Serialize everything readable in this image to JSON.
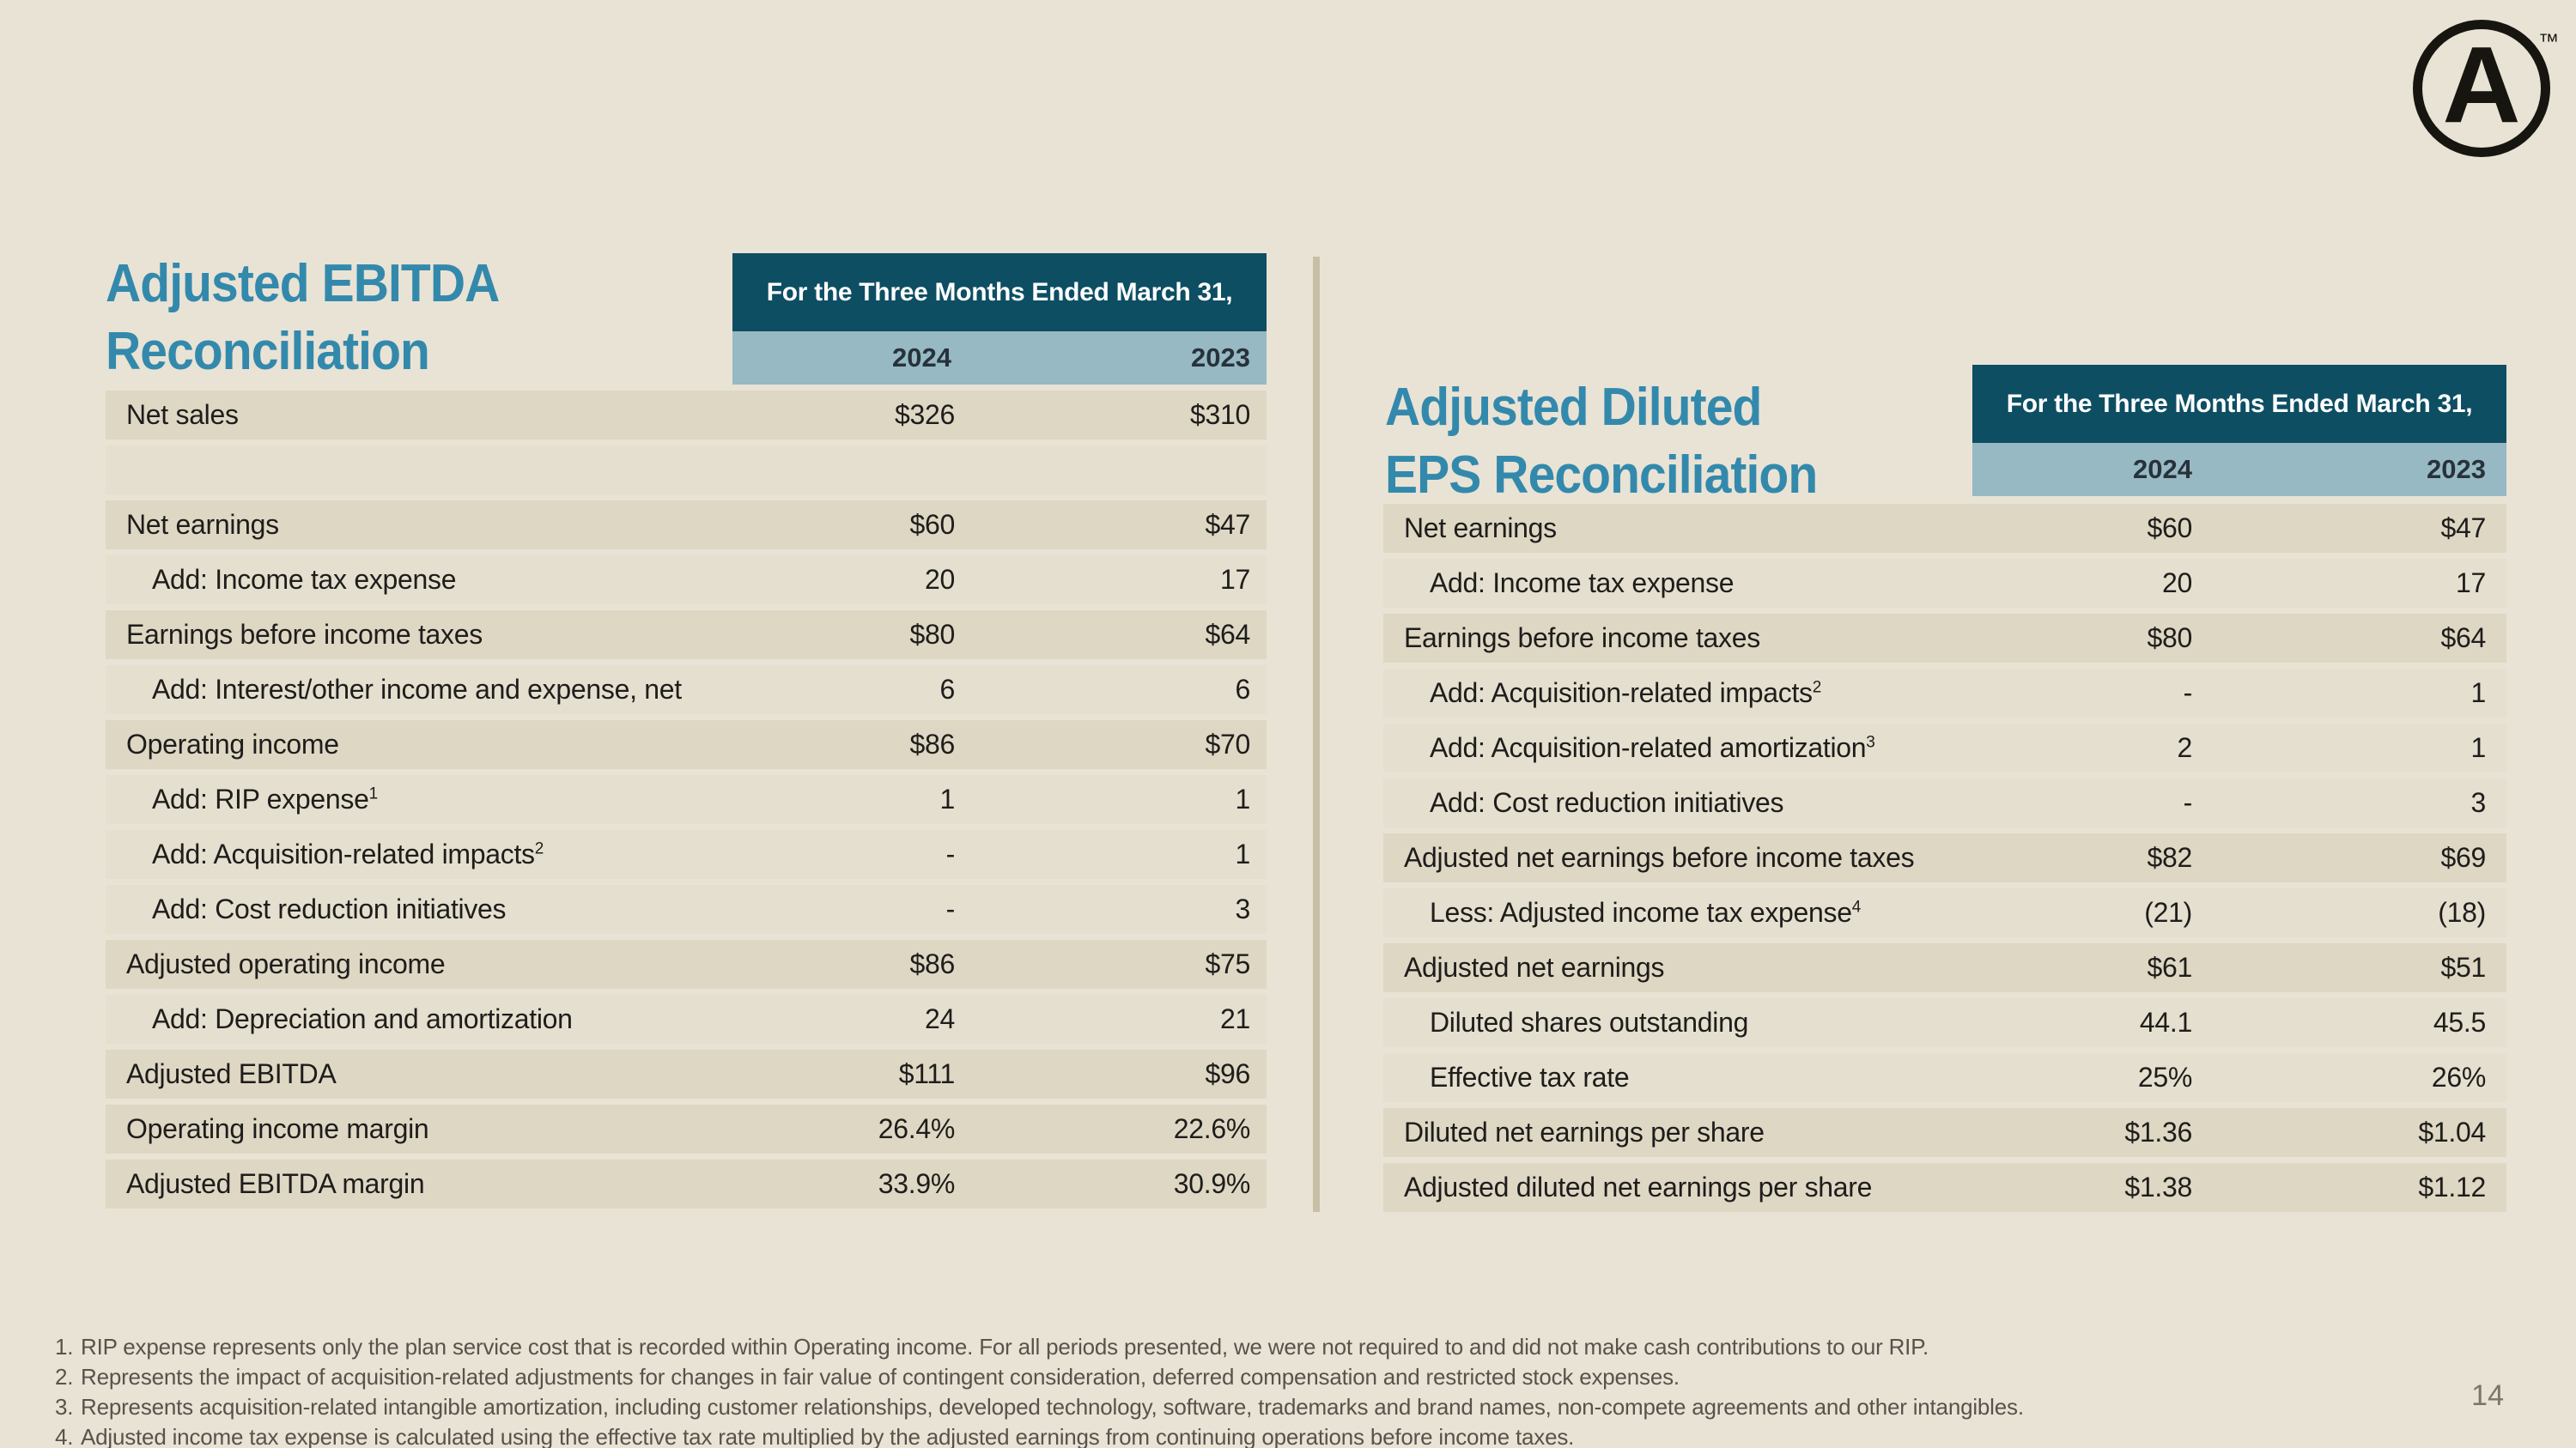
{
  "page": {
    "number": "14"
  },
  "logo": {
    "letter": "A",
    "trademark": "™"
  },
  "left_table": {
    "title_line1": "Adjusted EBITDA",
    "title_line2": "Reconciliation",
    "header": {
      "period": "For the Three Months Ended March 31,",
      "col_2024": "2024",
      "col_2023": "2023"
    },
    "rows": [
      {
        "label": "Net sales",
        "v1": "$326",
        "v2": "$310",
        "bg": "dark",
        "indent": false
      },
      {
        "label": "",
        "v1": "",
        "v2": "",
        "bg": "light",
        "indent": false
      },
      {
        "label": "Net earnings",
        "v1": "$60",
        "v2": "$47",
        "bg": "dark",
        "indent": false
      },
      {
        "label": "Add: Income tax expense",
        "v1": "20",
        "v2": "17",
        "bg": "light",
        "indent": true
      },
      {
        "label": "Earnings before income taxes",
        "v1": "$80",
        "v2": "$64",
        "bg": "dark",
        "indent": false
      },
      {
        "label": "Add: Interest/other income and expense, net",
        "v1": "6",
        "v2": "6",
        "bg": "light",
        "indent": true
      },
      {
        "label": "Operating income",
        "v1": "$86",
        "v2": "$70",
        "bg": "dark",
        "indent": false
      },
      {
        "label": "Add: RIP expense",
        "sup": "1",
        "v1": "1",
        "v2": "1",
        "bg": "light",
        "indent": true
      },
      {
        "label": "Add: Acquisition-related impacts",
        "sup": "2",
        "v1": "-",
        "v2": "1",
        "bg": "light",
        "indent": true
      },
      {
        "label": "Add: Cost reduction initiatives",
        "v1": "-",
        "v2": "3",
        "bg": "light",
        "indent": true
      },
      {
        "label": "Adjusted operating income",
        "v1": "$86",
        "v2": "$75",
        "bg": "dark",
        "indent": false
      },
      {
        "label": "Add: Depreciation and amortization",
        "v1": "24",
        "v2": "21",
        "bg": "light",
        "indent": true
      },
      {
        "label": "Adjusted EBITDA",
        "v1": "$111",
        "v2": "$96",
        "bg": "dark",
        "indent": false
      },
      {
        "label": "Operating income margin",
        "v1": "26.4%",
        "v2": "22.6%",
        "bg": "dark",
        "indent": false
      },
      {
        "label": "Adjusted EBITDA margin",
        "v1": "33.9%",
        "v2": "30.9%",
        "bg": "dark",
        "indent": false
      }
    ]
  },
  "right_table": {
    "title_line1": "Adjusted Diluted",
    "title_line2": "EPS Reconciliation",
    "header": {
      "period": "For the Three Months Ended March 31,",
      "col_2024": "2024",
      "col_2023": "2023"
    },
    "rows": [
      {
        "label": "Net earnings",
        "v1": "$60",
        "v2": "$47",
        "bg": "dark",
        "indent": false
      },
      {
        "label": "Add: Income tax expense",
        "v1": "20",
        "v2": "17",
        "bg": "light",
        "indent": true
      },
      {
        "label": "Earnings before income taxes",
        "v1": "$80",
        "v2": "$64",
        "bg": "dark",
        "indent": false
      },
      {
        "label": "Add: Acquisition-related impacts",
        "sup": "2",
        "v1": "-",
        "v2": "1",
        "bg": "light",
        "indent": true
      },
      {
        "label": "Add: Acquisition-related amortization",
        "sup": "3",
        "v1": "2",
        "v2": "1",
        "bg": "light",
        "indent": true
      },
      {
        "label": "Add: Cost reduction initiatives",
        "v1": "-",
        "v2": "3",
        "bg": "light",
        "indent": true
      },
      {
        "label": "Adjusted net earnings before income taxes",
        "v1": "$82",
        "v2": "$69",
        "bg": "dark",
        "indent": false
      },
      {
        "label": "Less: Adjusted income tax expense",
        "sup": "4",
        "v1": "(21)",
        "v2": "(18)",
        "bg": "light",
        "indent": true
      },
      {
        "label": "Adjusted net earnings",
        "v1": "$61",
        "v2": "$51",
        "bg": "dark",
        "indent": false
      },
      {
        "label": "Diluted shares outstanding",
        "v1": "44.1",
        "v2": "45.5",
        "bg": "light",
        "indent": true
      },
      {
        "label": "Effective tax rate",
        "v1": "25%",
        "v2": "26%",
        "bg": "light",
        "indent": true
      },
      {
        "label": "Diluted net earnings per share",
        "v1": "$1.36",
        "v2": "$1.04",
        "bg": "dark",
        "indent": false
      },
      {
        "label": "Adjusted diluted net earnings per share",
        "v1": "$1.38",
        "v2": "$1.12",
        "bg": "dark",
        "indent": false
      }
    ]
  },
  "footnotes": [
    {
      "num": "1.",
      "text": "RIP expense represents only the plan service cost that is recorded within Operating income. For all periods presented, we were not required to and did not make cash contributions to our RIP."
    },
    {
      "num": "2.",
      "text": "Represents the impact of acquisition-related adjustments for changes in fair value of contingent consideration, deferred compensation and restricted stock expenses."
    },
    {
      "num": "3.",
      "text": "Represents acquisition-related intangible amortization, including customer relationships, developed technology, software, trademarks and brand names, non-compete agreements and other intangibles."
    },
    {
      "num": "4.",
      "text": "Adjusted income tax expense is calculated using the effective tax rate multiplied by the adjusted earnings from continuing operations before income taxes."
    }
  ],
  "colors": {
    "page_bg": "#e9e3d5",
    "row_dark_bg": "#ded7c4",
    "row_light_bg": "#e5dfcf",
    "header_bg": "#0d4e63",
    "year_band_bg": "#96b9c4",
    "title_text": "#3389ac",
    "divider": "#c8bfa7",
    "row_text": "#1e1d1b",
    "footnote_text": "#57534b",
    "page_num_text": "#7b756a",
    "logo_ink": "#17150f"
  }
}
